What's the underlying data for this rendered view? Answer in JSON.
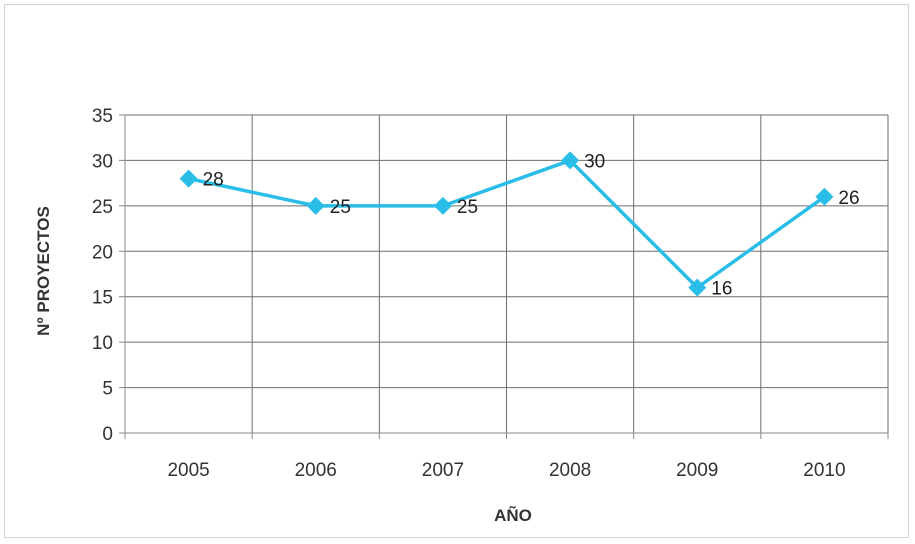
{
  "chart_data": {
    "type": "line",
    "title": "",
    "xlabel": "AÑO",
    "ylabel": "Nº PROYECTOS",
    "categories": [
      "2005",
      "2006",
      "2007",
      "2008",
      "2009",
      "2010"
    ],
    "series": [
      {
        "values": [
          28,
          25,
          25,
          30,
          16,
          26
        ]
      }
    ],
    "ylim": [
      0,
      35
    ],
    "yticks": [
      0,
      5,
      10,
      15,
      20,
      25,
      30,
      35
    ],
    "grid": true,
    "data_labels": true,
    "colors": {
      "series": "#29bde8",
      "grid": "#6e6e6e",
      "axis": "#8a8a8a"
    }
  }
}
